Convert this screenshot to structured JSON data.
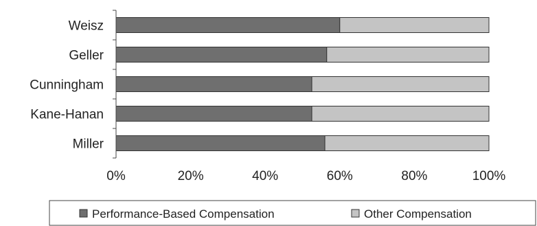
{
  "chart_data": {
    "type": "bar",
    "orientation": "horizontal",
    "stacked": true,
    "categories": [
      "Weisz",
      "Geller",
      "Cunningham",
      "Kane-Hanan",
      "Miller"
    ],
    "series": [
      {
        "name": "Performance-Based Compensation",
        "values": [
          60,
          56.5,
          52.5,
          52.5,
          56
        ],
        "color": "#6f6f6f"
      },
      {
        "name": "Other Compensation",
        "values": [
          40,
          43.5,
          47.5,
          47.5,
          44
        ],
        "color": "#c4c4c4"
      }
    ],
    "xlim": [
      0,
      100
    ],
    "xticks": [
      "0%",
      "20%",
      "40%",
      "60%",
      "80%",
      "100%"
    ],
    "legend_position": "bottom",
    "grid": false
  }
}
